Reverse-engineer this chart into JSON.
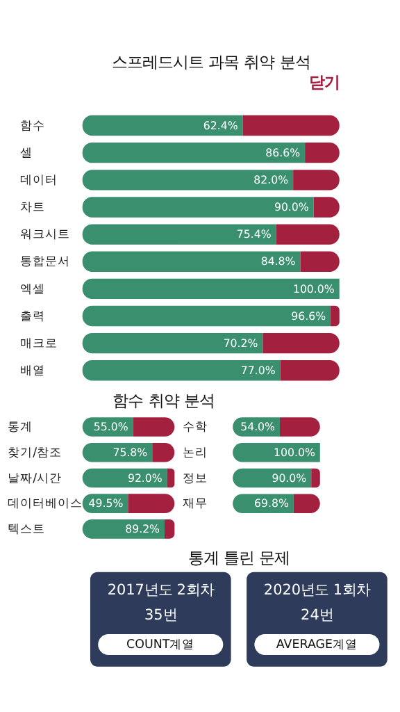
{
  "chart_data": [
    {
      "type": "bar",
      "title": "스프레드시트 과목 취약 분석",
      "annotations": [
        "닫기"
      ],
      "orientation": "horizontal",
      "stacked": true,
      "xlim": [
        0,
        100
      ],
      "tick_labels": "y",
      "categories": [
        "함수",
        "셀",
        "데이터",
        "차트",
        "워크시트",
        "통합문서",
        "엑셀",
        "출력",
        "매크로",
        "배열"
      ],
      "series": [
        {
          "color": "#3a8f6f",
          "values": [
            62.4,
            86.6,
            82.0,
            90.0,
            75.4,
            84.8,
            100.0,
            96.6,
            70.2,
            77.0
          ],
          "value_labels": [
            "62.4%",
            "86.6%",
            "82.0%",
            "90.0%",
            "75.4%",
            "84.8%",
            "100.0%",
            "96.6%",
            "70.2%",
            "77.0%"
          ]
        },
        {
          "color": "#a3203f",
          "values": [
            37.6,
            13.4,
            18.0,
            10.0,
            24.6,
            15.2,
            0.0,
            3.4,
            29.8,
            23.0
          ]
        }
      ]
    },
    {
      "type": "bar",
      "title": "함수 취약 분석",
      "orientation": "horizontal",
      "stacked": true,
      "xlim": [
        0,
        100
      ],
      "tick_labels": "y",
      "categories": [
        "통계",
        "찾기/참조",
        "날짜/시간",
        "데이터베이스",
        "텍스트"
      ],
      "series": [
        {
          "color": "#3a8f6f",
          "values": [
            55.0,
            75.8,
            92.0,
            49.5,
            89.2
          ],
          "value_labels": [
            "55.0%",
            "75.8%",
            "92.0%",
            "49.5%",
            "89.2%"
          ]
        },
        {
          "color": "#a3203f",
          "values": [
            45.0,
            24.2,
            8.0,
            50.5,
            10.8
          ]
        }
      ]
    },
    {
      "type": "bar",
      "orientation": "horizontal",
      "stacked": true,
      "xlim": [
        0,
        100
      ],
      "tick_labels": "y",
      "categories": [
        "수학",
        "논리",
        "정보",
        "재무"
      ],
      "series": [
        {
          "color": "#3a8f6f",
          "values": [
            54.0,
            100.0,
            90.0,
            69.8
          ],
          "value_labels": [
            "54.0%",
            "100.0%",
            "90.0%",
            "69.8%"
          ]
        },
        {
          "color": "#a3203f",
          "values": [
            46.0,
            0.0,
            10.0,
            30.2
          ]
        }
      ]
    },
    {
      "type": "other",
      "title": "통계 틀린 문제",
      "annotations": [
        "2017년도 2회차",
        "35번",
        "COUNT계열",
        "2020년도 1회차",
        "24번",
        "AVERAGE계열"
      ]
    }
  ]
}
